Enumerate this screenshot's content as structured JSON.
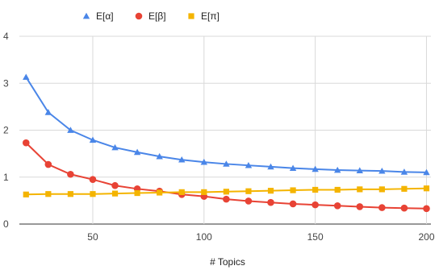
{
  "chart_data": {
    "type": "line",
    "title": "",
    "xlabel": "# Topics",
    "ylabel": "",
    "xlim": [
      17,
      202
    ],
    "ylim": [
      0,
      4
    ],
    "x_ticks": [
      50,
      100,
      150,
      200
    ],
    "y_ticks": [
      0,
      1,
      2,
      3,
      4
    ],
    "grid": true,
    "legend_position": "top",
    "x": [
      20,
      30,
      40,
      50,
      60,
      70,
      80,
      90,
      100,
      110,
      120,
      130,
      140,
      150,
      160,
      170,
      180,
      190,
      200
    ],
    "series": [
      {
        "name": "E[α]",
        "color": "#4a86e8",
        "marker": "triangle",
        "values": [
          3.13,
          2.38,
          2.0,
          1.79,
          1.63,
          1.53,
          1.44,
          1.37,
          1.32,
          1.28,
          1.25,
          1.22,
          1.19,
          1.17,
          1.15,
          1.14,
          1.13,
          1.11,
          1.1
        ]
      },
      {
        "name": "E[β]",
        "color": "#e84335",
        "marker": "circle",
        "values": [
          1.73,
          1.27,
          1.06,
          0.95,
          0.82,
          0.75,
          0.7,
          0.63,
          0.59,
          0.53,
          0.49,
          0.46,
          0.43,
          0.41,
          0.39,
          0.37,
          0.35,
          0.34,
          0.33
        ]
      },
      {
        "name": "E[π]",
        "color": "#f4b400",
        "marker": "square",
        "values": [
          0.63,
          0.64,
          0.64,
          0.64,
          0.65,
          0.66,
          0.67,
          0.68,
          0.68,
          0.69,
          0.7,
          0.71,
          0.72,
          0.73,
          0.73,
          0.74,
          0.74,
          0.75,
          0.76
        ]
      }
    ]
  }
}
